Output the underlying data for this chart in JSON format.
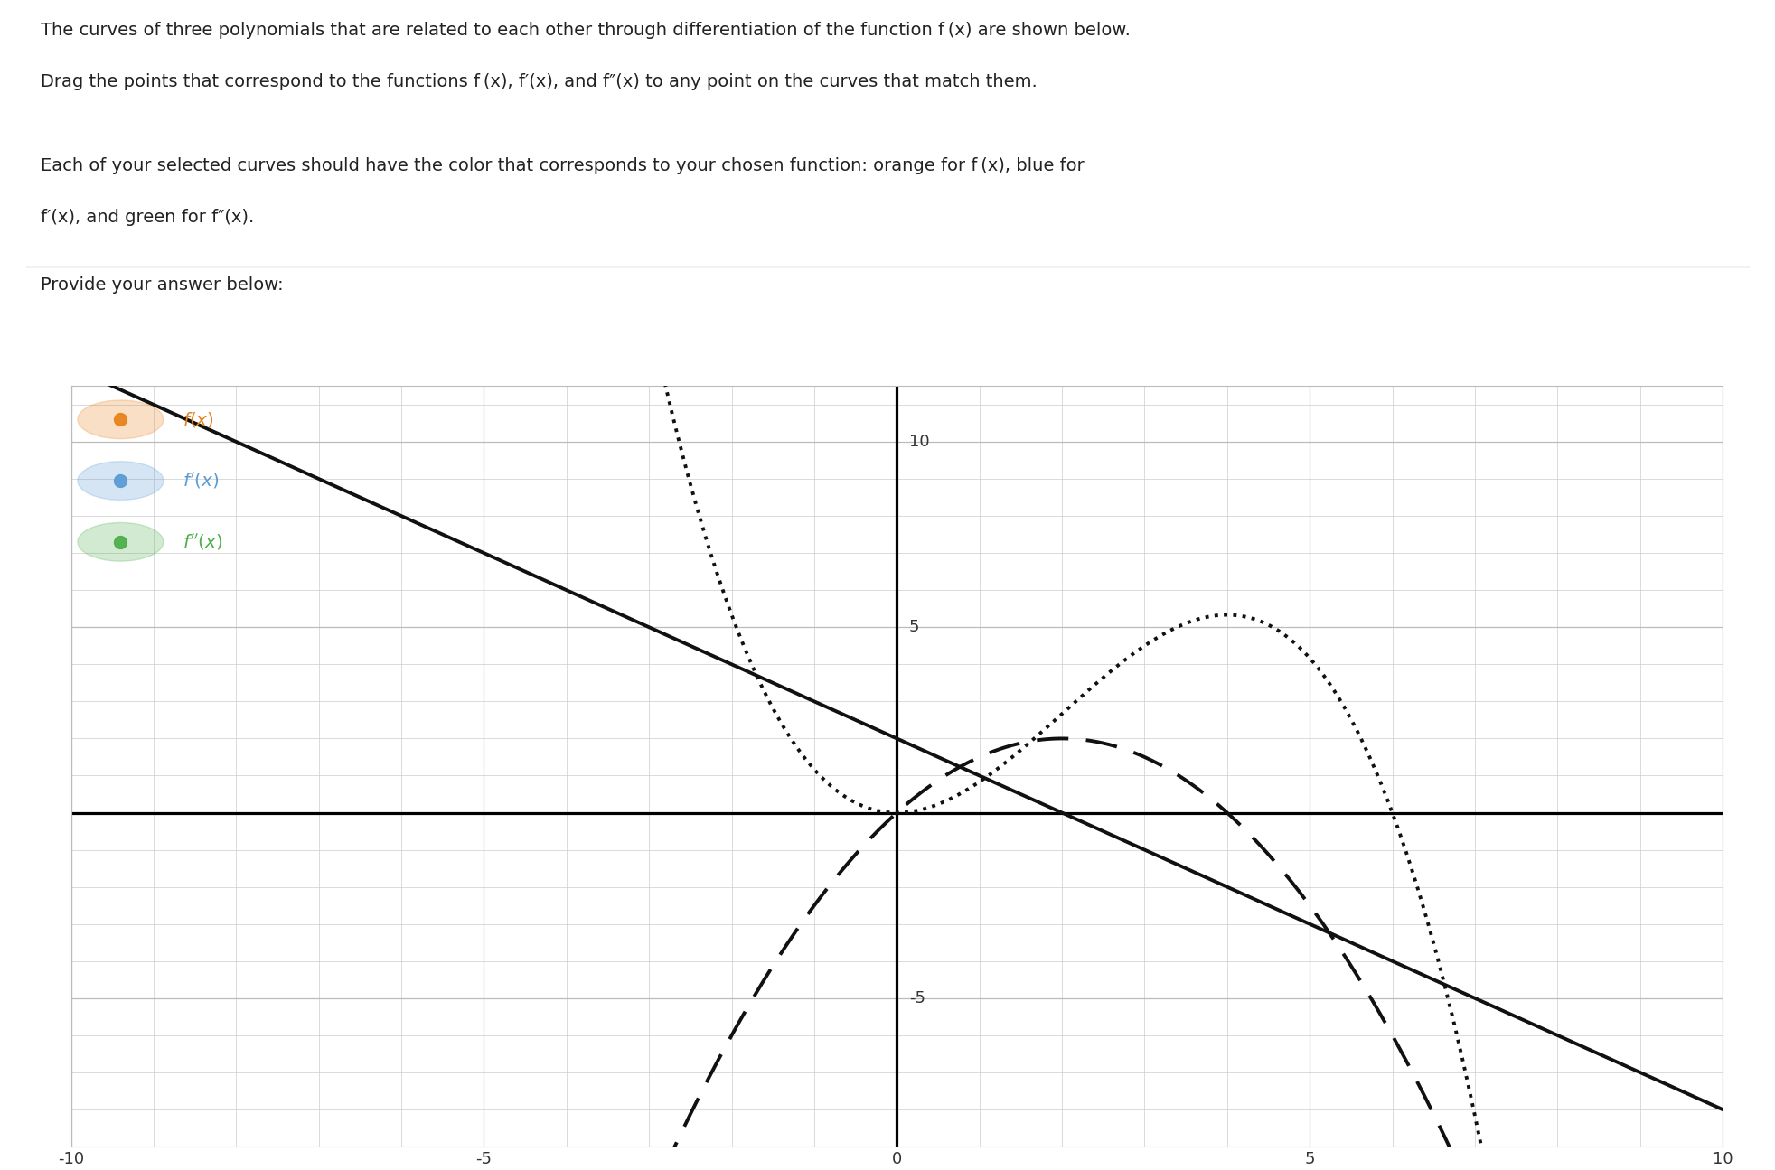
{
  "xlim": [
    -10,
    10
  ],
  "ylim": [
    -8.5,
    11.5
  ],
  "xticks": [
    -10,
    -5,
    0,
    5,
    10
  ],
  "yticks": [
    -5,
    5,
    10
  ],
  "bg_color": "#FFFFFF",
  "grid_color": "#CCCCCC",
  "line_color": "#111111",
  "text_color": "#222222",
  "legend_color_fx": "#E8821A",
  "legend_color_fpx": "#5B9BD5",
  "legend_color_fppx": "#4DAF4A",
  "header_line1": "The curves of three polynomials that are related to each other through differentiation of the function f (x) are shown below.",
  "header_line2": "Drag the points that correspond to the functions f (x), f′(x), and f″(x) to any point on the curves that match them.",
  "header_line3": "Each of your selected curves should have the color that corresponds to your chosen function: orange for f (x), blue for",
  "header_line4": "f′(x), and green for f″(x).",
  "provide_text": "Provide your answer below:"
}
